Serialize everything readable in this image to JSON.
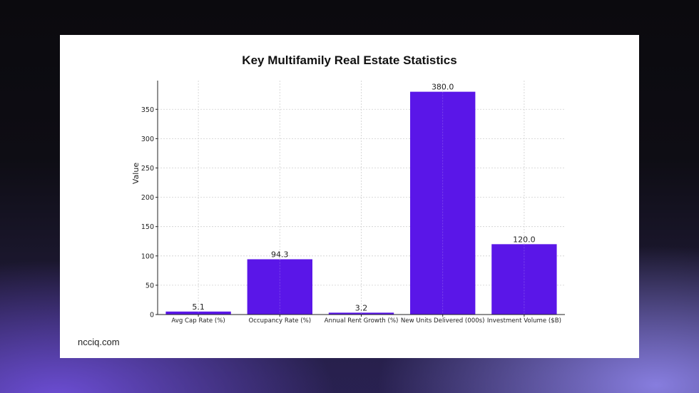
{
  "page": {
    "watermark": "ncciq.com"
  },
  "chart_data": {
    "type": "bar",
    "title": "Key Multifamily Real Estate Statistics",
    "xlabel": "",
    "ylabel": "Value",
    "categories": [
      "Avg Cap Rate (%)",
      "Occupancy Rate (%)",
      "Annual Rent Growth (%)",
      "New Units Delivered (000s)",
      "Investment Volume ($B)"
    ],
    "values": [
      5.1,
      94.3,
      3.2,
      380.0,
      120.0
    ],
    "data_labels": [
      "5.1",
      "94.3",
      "3.2",
      "380.0",
      "120.0"
    ],
    "ylim": [
      0,
      399
    ],
    "yticks": [
      0,
      50,
      100,
      150,
      200,
      250,
      300,
      350
    ],
    "grid": true,
    "legend": null,
    "bar_color": "#5a16e8"
  }
}
